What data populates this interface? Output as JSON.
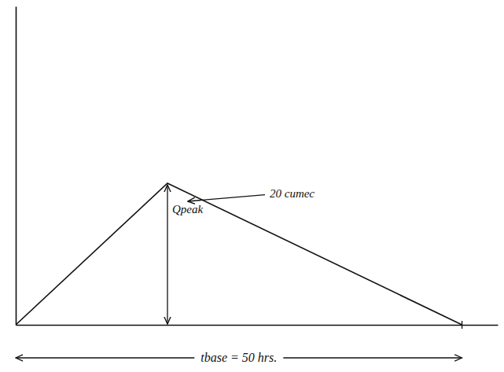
{
  "chart_data": {
    "type": "line",
    "x": [
      0,
      17,
      50
    ],
    "values": [
      0,
      20,
      0
    ],
    "color": "#111111",
    "xlim": [
      0,
      54
    ],
    "ylim": [
      0,
      45
    ],
    "tick_labels": false,
    "annotations": [
      {
        "text": "Qpeak"
      },
      {
        "text": "20 cumec"
      },
      {
        "text": "tbase = 50 hrs."
      }
    ]
  }
}
